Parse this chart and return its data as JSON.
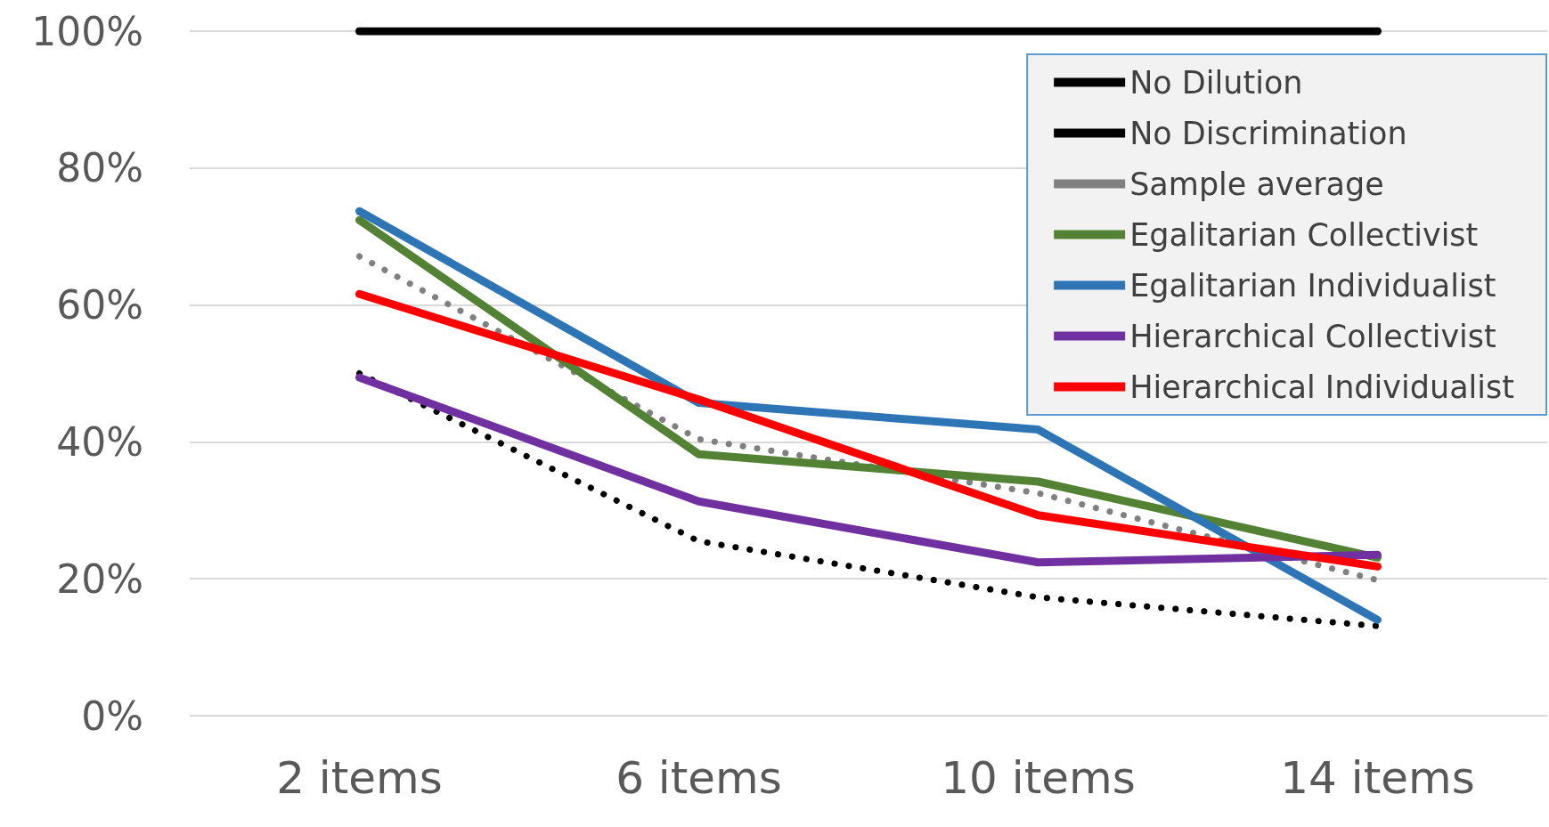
{
  "chart_data": {
    "type": "line",
    "categories": [
      "2 items",
      "6 items",
      "10 items",
      "14 items"
    ],
    "series": [
      {
        "name": "No Dilution",
        "color": "#000000",
        "values": [
          100,
          100,
          100,
          100
        ]
      },
      {
        "name": "No Discrimination",
        "color": "#000000",
        "line_style": "dotted",
        "values": [
          50,
          25.5,
          17.3,
          13.1
        ]
      },
      {
        "name": "Sample average",
        "color": "#808080",
        "line_style": "dotted",
        "values": [
          67.1,
          40.4,
          32.5,
          19.8
        ]
      },
      {
        "name": "Egalitarian Collectivist",
        "color": "#548235",
        "values": [
          72.4,
          38.2,
          34.2,
          23.1
        ]
      },
      {
        "name": "Egalitarian Individualist",
        "color": "#2e75b6",
        "values": [
          73.7,
          45.7,
          41.8,
          14.0
        ]
      },
      {
        "name": "Hierarchical Collectivist",
        "color": "#7030a0",
        "values": [
          49.4,
          31.3,
          22.4,
          23.5
        ]
      },
      {
        "name": "Hierarchical Individualist",
        "color": "#ff0000",
        "values": [
          61.6,
          46.2,
          29.3,
          21.8
        ]
      }
    ],
    "ylim": [
      0,
      100
    ],
    "yticks": [
      {
        "value": 0,
        "label": "0%"
      },
      {
        "value": 20,
        "label": "20%"
      },
      {
        "value": 40,
        "label": "40%"
      },
      {
        "value": 60,
        "label": "60%"
      },
      {
        "value": 80,
        "label": "80%"
      },
      {
        "value": 100,
        "label": "100%"
      }
    ],
    "grid": "y",
    "legend": "top right",
    "marker": "none",
    "line_style": "solid"
  }
}
